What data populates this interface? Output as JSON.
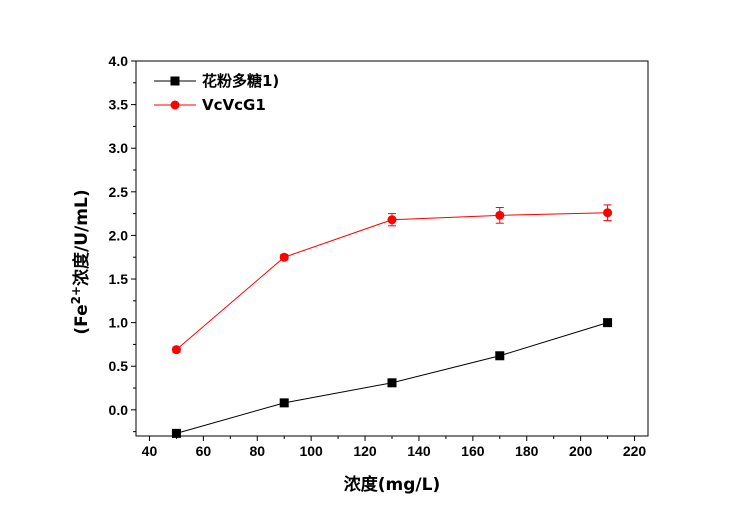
{
  "chart_data": {
    "type": "line",
    "xlabel": "浓度(mg/L)",
    "ylabel_prefix": "(Fe",
    "ylabel_sup": "2+",
    "ylabel_suffix": "浓度/U/mL)",
    "xlim": [
      35,
      225
    ],
    "ylim": [
      -0.3,
      4.0
    ],
    "x_ticks": [
      "40",
      "60",
      "80",
      "100",
      "120",
      "140",
      "160",
      "180",
      "200",
      "220"
    ],
    "y_ticks": [
      "0.0",
      "0.5",
      "1.0",
      "1.5",
      "2.0",
      "2.5",
      "3.0",
      "3.5",
      "4.0"
    ],
    "x": [
      50,
      90,
      130,
      170,
      210
    ],
    "legend_position": "top-left",
    "grid": false,
    "series": [
      {
        "name": "花粉多糖1)",
        "color": "#000000",
        "marker": "square",
        "values": [
          -0.27,
          0.08,
          0.31,
          0.62,
          1.0
        ],
        "errors": [
          0,
          0,
          0,
          0,
          0
        ]
      },
      {
        "name": "VcVcG1",
        "color": "#ff0000",
        "marker": "circle",
        "values": [
          0.69,
          1.75,
          2.18,
          2.23,
          2.26
        ],
        "errors": [
          0.03,
          0.03,
          0.07,
          0.09,
          0.09
        ]
      }
    ]
  }
}
